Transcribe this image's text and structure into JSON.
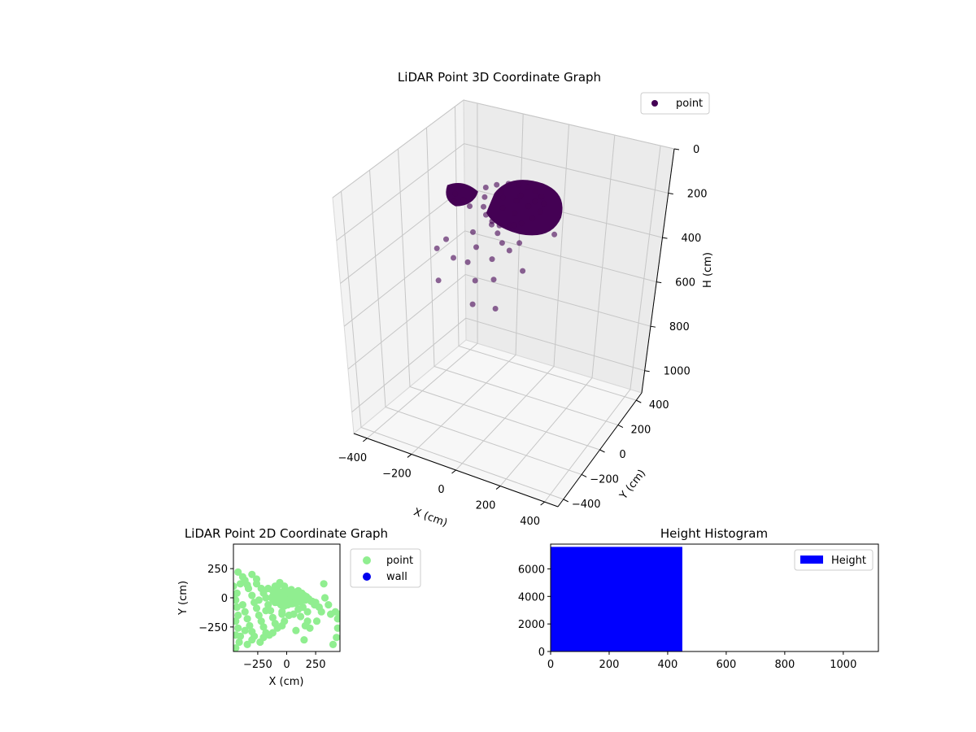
{
  "chart_data": [
    {
      "type": "scatter",
      "projection": "3d",
      "title": "LiDAR Point 3D Coordinate Graph",
      "xlabel": "X (cm)",
      "ylabel": "Y (cm)",
      "zlabel": "H (cm)",
      "xticks": [
        "−400",
        "−200",
        "0",
        "200",
        "400"
      ],
      "yticks": [
        "400",
        "200",
        "0",
        "−200",
        "−400"
      ],
      "zticks": [
        "0",
        "200",
        "400",
        "600",
        "800",
        "1000"
      ],
      "zlim": [
        0,
        1100
      ],
      "z_inverted": true,
      "legend": {
        "entries": [
          "point"
        ],
        "placement": "top-right"
      },
      "series": [
        {
          "name": "point",
          "color": "#440154",
          "points_xyz": [
            [
              -150,
              120,
              160
            ],
            [
              -120,
              150,
              155
            ],
            [
              -80,
              170,
              150
            ],
            [
              -40,
              180,
              150
            ],
            [
              0,
              180,
              150
            ],
            [
              40,
              170,
              155
            ],
            [
              80,
              150,
              160
            ],
            [
              110,
              120,
              170
            ],
            [
              120,
              80,
              185
            ],
            [
              110,
              40,
              200
            ],
            [
              80,
              10,
              215
            ],
            [
              40,
              -10,
              225
            ],
            [
              0,
              -20,
              230
            ],
            [
              -40,
              -10,
              225
            ],
            [
              -80,
              10,
              215
            ],
            [
              -110,
              40,
              200
            ],
            [
              -130,
              80,
              180
            ],
            [
              -60,
              100,
              175
            ],
            [
              0,
              100,
              175
            ],
            [
              60,
              90,
              180
            ],
            [
              -30,
              50,
              190
            ],
            [
              30,
              40,
              195
            ],
            [
              0,
              130,
              165
            ],
            [
              -90,
              130,
              168
            ],
            [
              70,
              120,
              170
            ],
            [
              -200,
              40,
              190
            ],
            [
              -230,
              20,
              195
            ],
            [
              -250,
              60,
              185
            ],
            [
              -180,
              80,
              185
            ],
            [
              -160,
              20,
              200
            ],
            [
              -60,
              20,
              260
            ],
            [
              -20,
              0,
              280
            ],
            [
              20,
              -30,
              300
            ],
            [
              -80,
              -60,
              330
            ],
            [
              60,
              -40,
              320
            ],
            [
              -250,
              -10,
              360
            ],
            [
              -300,
              0,
              420
            ],
            [
              -200,
              -150,
              470
            ],
            [
              40,
              -120,
              420
            ],
            [
              160,
              -100,
              360
            ],
            [
              -20,
              -180,
              520
            ],
            [
              100,
              -200,
              500
            ],
            [
              -100,
              -90,
              390
            ],
            [
              0,
              -70,
              360
            ],
            [
              -160,
              -100,
              380
            ],
            [
              80,
              0,
              300
            ],
            [
              -40,
              -130,
              440
            ],
            [
              200,
              60,
              260
            ],
            [
              -120,
              -20,
              290
            ],
            [
              30,
              40,
              250
            ]
          ]
        }
      ]
    },
    {
      "type": "scatter",
      "title": "LiDAR Point 2D Coordinate Graph",
      "xlabel": "X (cm)",
      "ylabel": "Y (cm)",
      "xlim": [
        -460,
        460
      ],
      "ylim": [
        -460,
        460
      ],
      "xticks": [
        "−250",
        "0",
        "250"
      ],
      "yticks": [
        "250",
        "0",
        "−250"
      ],
      "legend": {
        "entries": [
          "point",
          "wall"
        ],
        "placement": "outside-right"
      },
      "series": [
        {
          "name": "point",
          "color": "#90ee90",
          "points": [
            [
              -420,
              220
            ],
            [
              -380,
              180
            ],
            [
              -360,
              150
            ],
            [
              -340,
              110
            ],
            [
              -330,
              80
            ],
            [
              -400,
              120
            ],
            [
              -430,
              40
            ],
            [
              -440,
              -20
            ],
            [
              -430,
              -80
            ],
            [
              -420,
              -150
            ],
            [
              -440,
              -200
            ],
            [
              -420,
              -260
            ],
            [
              -440,
              -320
            ],
            [
              -410,
              -380
            ],
            [
              -440,
              -430
            ],
            [
              -380,
              -60
            ],
            [
              -360,
              -120
            ],
            [
              -340,
              -180
            ],
            [
              -320,
              -240
            ],
            [
              -300,
              -290
            ],
            [
              -280,
              -330
            ],
            [
              -340,
              -400
            ],
            [
              -300,
              20
            ],
            [
              -280,
              -40
            ],
            [
              -260,
              -90
            ],
            [
              -240,
              -150
            ],
            [
              -220,
              -200
            ],
            [
              -200,
              -250
            ],
            [
              -180,
              -300
            ],
            [
              -260,
              120
            ],
            [
              -220,
              80
            ],
            [
              -200,
              40
            ],
            [
              -180,
              0
            ],
            [
              -160,
              -60
            ],
            [
              -140,
              -110
            ],
            [
              -120,
              -170
            ],
            [
              -100,
              -220
            ],
            [
              -80,
              -260
            ],
            [
              -240,
              -20
            ],
            [
              -160,
              80
            ],
            [
              -120,
              60
            ],
            [
              -80,
              100
            ],
            [
              -100,
              20
            ],
            [
              -60,
              -40
            ],
            [
              -40,
              -120
            ],
            [
              -260,
              160
            ],
            [
              -300,
              200
            ],
            [
              -200,
              -340
            ],
            [
              -120,
              -300
            ],
            [
              -360,
              -280
            ],
            [
              -400,
              -330
            ],
            [
              -300,
              -360
            ],
            [
              -230,
              -380
            ],
            [
              -150,
              -320
            ],
            [
              -180,
              -110
            ],
            [
              -60,
              0
            ],
            [
              -20,
              20
            ],
            [
              0,
              40
            ],
            [
              20,
              20
            ],
            [
              40,
              0
            ],
            [
              60,
              -20
            ],
            [
              80,
              0
            ],
            [
              100,
              20
            ],
            [
              120,
              0
            ],
            [
              140,
              -10
            ],
            [
              -40,
              50
            ],
            [
              -10,
              70
            ],
            [
              30,
              60
            ],
            [
              60,
              40
            ],
            [
              -50,
              -60
            ],
            [
              -20,
              -70
            ],
            [
              10,
              -60
            ],
            [
              50,
              -50
            ],
            [
              80,
              -40
            ],
            [
              0,
              -20
            ],
            [
              -30,
              -10
            ],
            [
              20,
              -30
            ],
            [
              -80,
              60
            ],
            [
              -100,
              -40
            ],
            [
              40,
              70
            ],
            [
              -20,
              100
            ],
            [
              -60,
              130
            ],
            [
              -100,
              100
            ],
            [
              100,
              60
            ],
            [
              130,
              40
            ],
            [
              150,
              20
            ],
            [
              170,
              10
            ],
            [
              160,
              -20
            ],
            [
              190,
              -10
            ],
            [
              220,
              -30
            ],
            [
              250,
              -40
            ],
            [
              280,
              -80
            ],
            [
              300,
              -120
            ],
            [
              180,
              -120
            ],
            [
              140,
              -80
            ],
            [
              100,
              -100
            ],
            [
              60,
              -140
            ],
            [
              -40,
              -140
            ],
            [
              20,
              -150
            ],
            [
              -40,
              -240
            ],
            [
              -20,
              -200
            ],
            [
              120,
              -160
            ],
            [
              210,
              -30
            ],
            [
              240,
              -60
            ],
            [
              180,
              -200
            ],
            [
              160,
              -240
            ],
            [
              200,
              -260
            ],
            [
              260,
              -200
            ],
            [
              330,
              0
            ],
            [
              360,
              -60
            ],
            [
              380,
              -140
            ],
            [
              420,
              -120
            ],
            [
              440,
              -180
            ],
            [
              460,
              -140
            ],
            [
              440,
              -260
            ],
            [
              430,
              -340
            ],
            [
              400,
              -400
            ],
            [
              80,
              -280
            ],
            [
              150,
              -360
            ],
            [
              320,
              120
            ],
            [
              -460,
              20
            ],
            [
              -460,
              100
            ]
          ]
        },
        {
          "name": "wall",
          "color": "#0000ee",
          "points": []
        }
      ]
    },
    {
      "type": "bar",
      "subtype": "histogram",
      "title": "Height Histogram",
      "xlim": [
        0,
        1120
      ],
      "ylim": [
        0,
        7800
      ],
      "xticks": [
        "0",
        "200",
        "400",
        "600",
        "800",
        "1000"
      ],
      "yticks": [
        "0",
        "2000",
        "4000",
        "6000"
      ],
      "legend": {
        "entries": [
          "Height"
        ],
        "placement": "top-right"
      },
      "series": [
        {
          "name": "Height",
          "color": "#0000ff",
          "bins": [
            {
              "x0": 0,
              "x1": 450,
              "count": 7600
            },
            {
              "x0": 450,
              "x1": 1120,
              "count": 0
            }
          ]
        }
      ]
    }
  ]
}
